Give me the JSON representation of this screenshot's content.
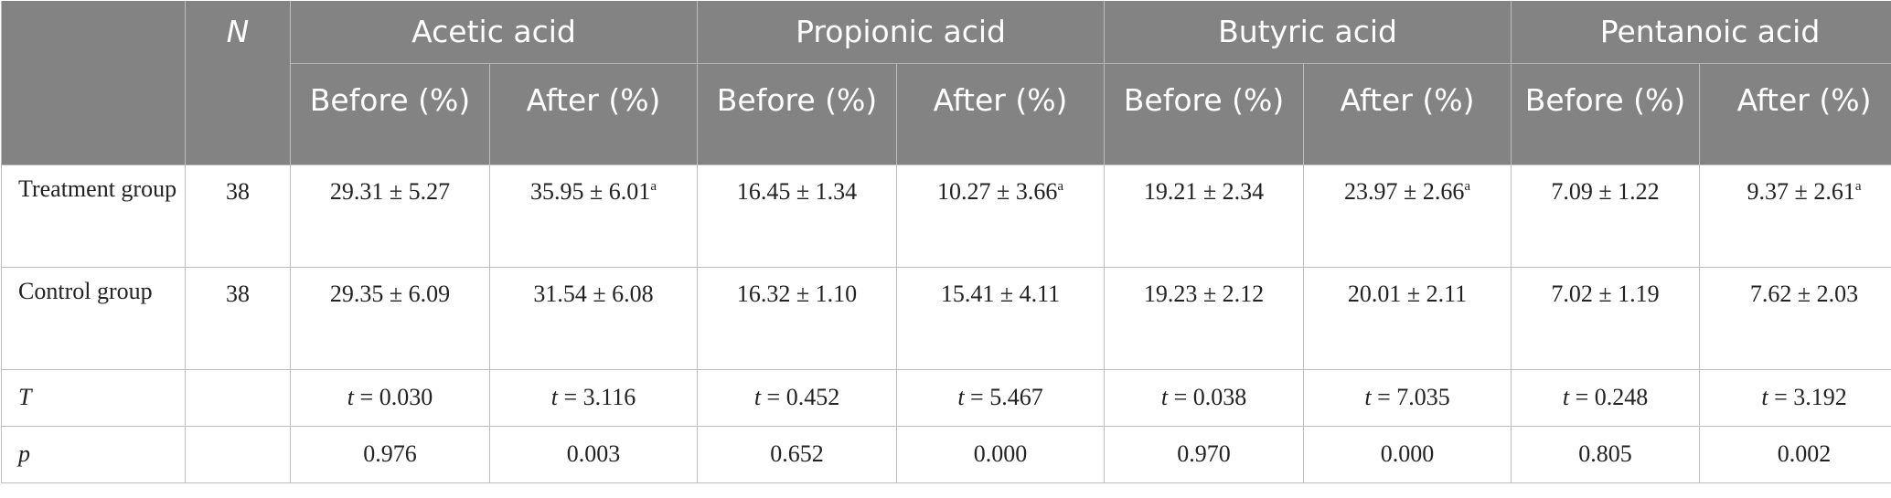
{
  "header": {
    "n_label": "N",
    "groups": [
      "Acetic acid",
      "Propionic acid",
      "Butyric acid",
      "Pentanoic acid"
    ],
    "before_label": "Before (%)",
    "after_label": "After (%)"
  },
  "rows": {
    "treatment": {
      "label": "Treatment group",
      "n": "38",
      "values": [
        "29.31 ± 5.27",
        "35.95 ± 6.01",
        "16.45 ± 1.34",
        "10.27 ± 3.66",
        "19.21 ± 2.34",
        "23.97 ± 2.66",
        "7.09 ± 1.22",
        "9.37 ± 2.61"
      ],
      "sup_mark": "a"
    },
    "control": {
      "label": "Control group",
      "n": "38",
      "values": [
        "29.35 ± 6.09",
        "31.54 ± 6.08",
        "16.32 ± 1.10",
        "15.41 ± 4.11",
        "19.23 ± 2.12",
        "20.01 ± 2.11",
        "7.02 ± 1.19",
        "7.62 ± 2.03"
      ]
    },
    "t": {
      "label": "T",
      "prefix": "t",
      "values": [
        "= 0.030",
        "= 3.116",
        "= 0.452",
        "= 5.467",
        "= 0.038",
        "= 7.035",
        "= 0.248",
        "= 3.192"
      ]
    },
    "p": {
      "label": "p",
      "values": [
        "0.976",
        "0.003",
        "0.652",
        "0.000",
        "0.970",
        "0.000",
        "0.805",
        "0.002"
      ]
    }
  }
}
